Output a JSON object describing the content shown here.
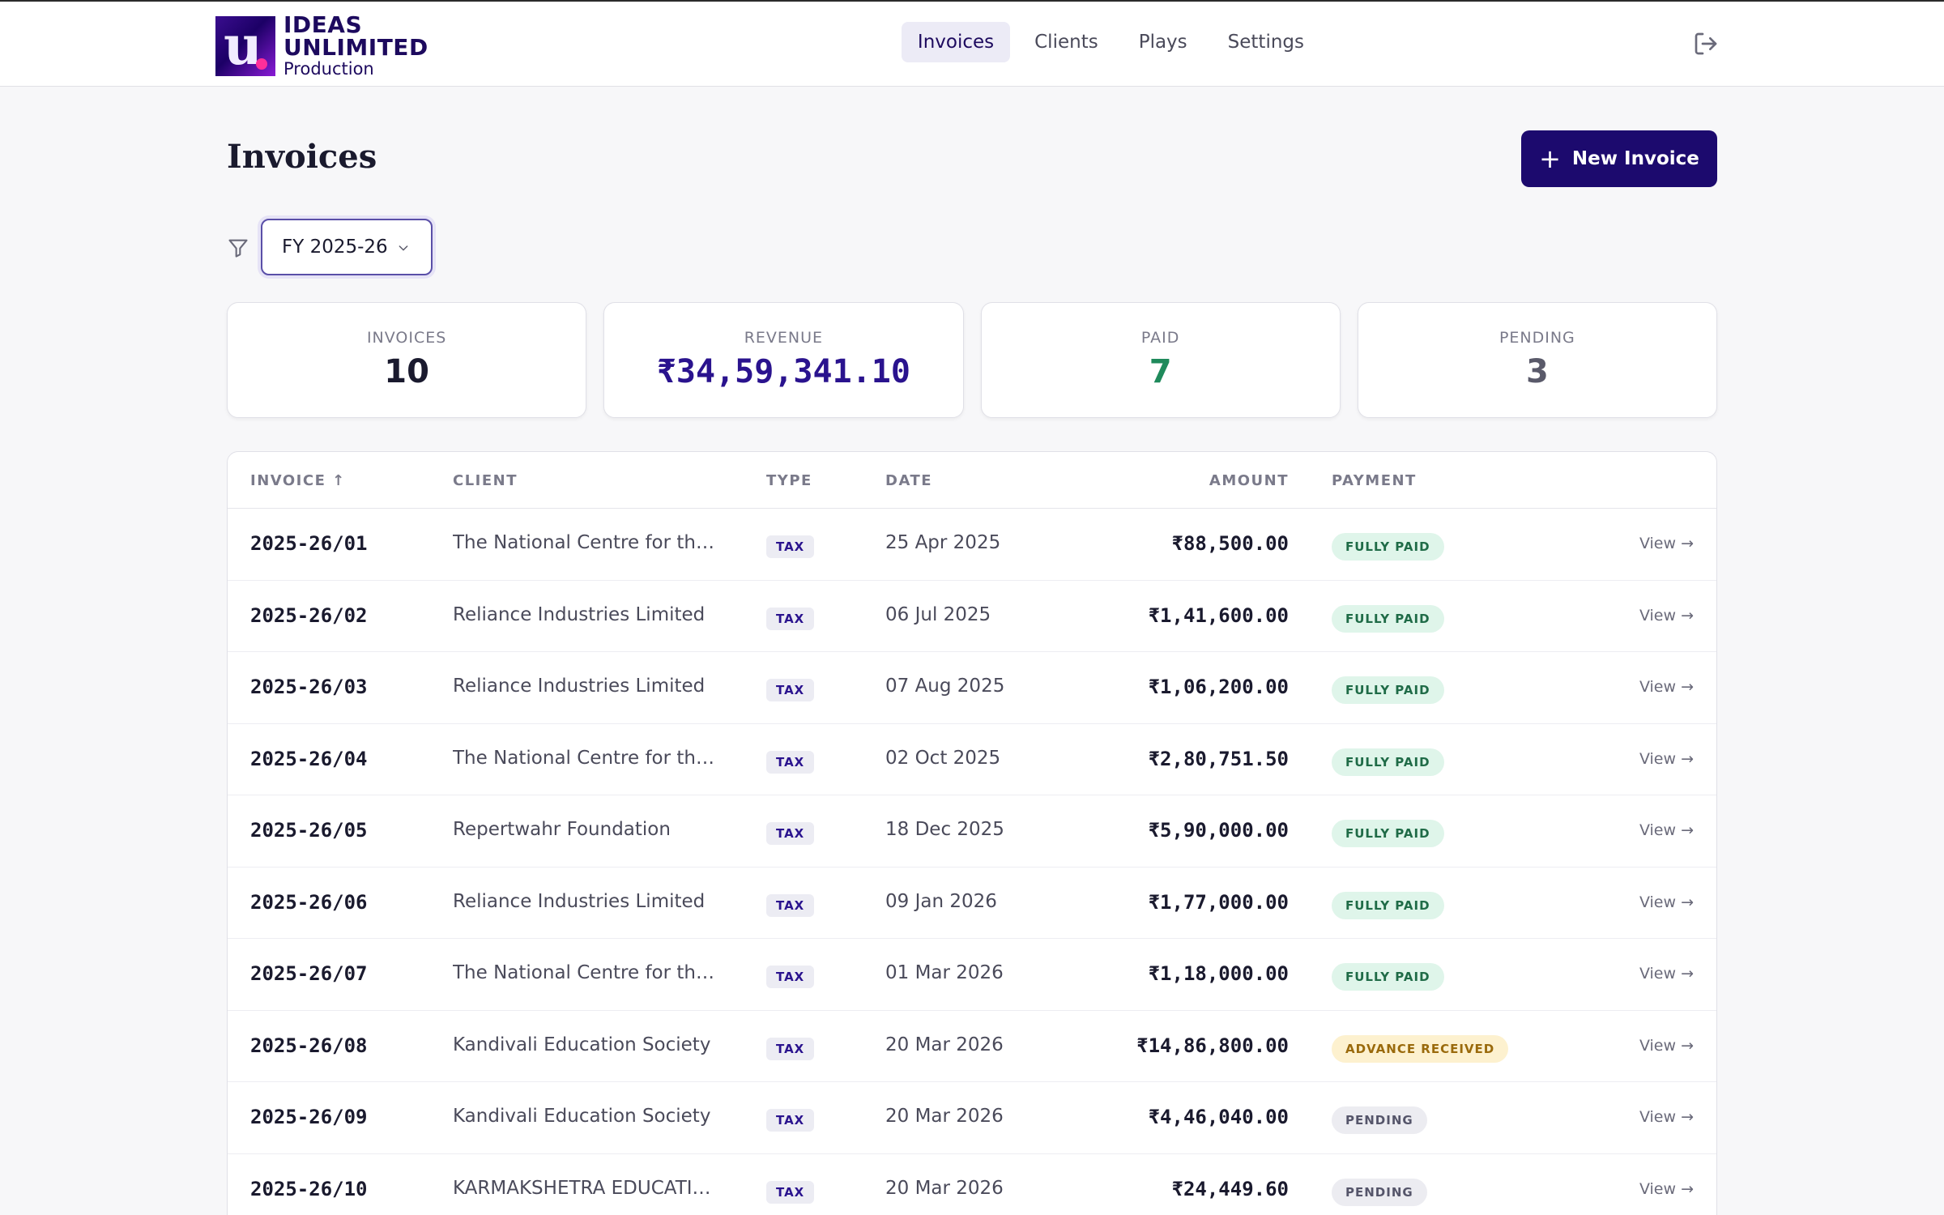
{
  "brand": {
    "line1": "IDEAS",
    "line2": "UNLIMITED",
    "line3": "Production"
  },
  "nav": {
    "items": [
      "Invoices",
      "Clients",
      "Plays",
      "Settings"
    ],
    "active": "Invoices"
  },
  "page": {
    "title": "Invoices",
    "new_button": "New Invoice"
  },
  "filter": {
    "selected": "FY 2025-26"
  },
  "stats": {
    "invoices": {
      "label": "INVOICES",
      "value": "10"
    },
    "revenue": {
      "label": "REVENUE",
      "value": "₹34,59,341.10"
    },
    "paid": {
      "label": "PAID",
      "value": "7"
    },
    "pending": {
      "label": "PENDING",
      "value": "3"
    }
  },
  "table": {
    "headers": {
      "invoice": "INVOICE ↑",
      "client": "CLIENT",
      "type": "TYPE",
      "date": "DATE",
      "amount": "AMOUNT",
      "payment": "PAYMENT"
    },
    "view_label": "View →",
    "rows": [
      {
        "invoice": "2025-26/01",
        "client": "The National Centre for the P...",
        "type": "TAX",
        "date": "25 Apr 2025",
        "amount": "₹88,500.00",
        "payment": "FULLY PAID",
        "status": "paid"
      },
      {
        "invoice": "2025-26/02",
        "client": "Reliance Industries Limited",
        "type": "TAX",
        "date": "06 Jul 2025",
        "amount": "₹1,41,600.00",
        "payment": "FULLY PAID",
        "status": "paid"
      },
      {
        "invoice": "2025-26/03",
        "client": "Reliance Industries Limited",
        "type": "TAX",
        "date": "07 Aug 2025",
        "amount": "₹1,06,200.00",
        "payment": "FULLY PAID",
        "status": "paid"
      },
      {
        "invoice": "2025-26/04",
        "client": "The National Centre for the P...",
        "type": "TAX",
        "date": "02 Oct 2025",
        "amount": "₹2,80,751.50",
        "payment": "FULLY PAID",
        "status": "paid"
      },
      {
        "invoice": "2025-26/05",
        "client": "Repertwahr Foundation",
        "type": "TAX",
        "date": "18 Dec 2025",
        "amount": "₹5,90,000.00",
        "payment": "FULLY PAID",
        "status": "paid"
      },
      {
        "invoice": "2025-26/06",
        "client": "Reliance Industries Limited",
        "type": "TAX",
        "date": "09 Jan 2026",
        "amount": "₹1,77,000.00",
        "payment": "FULLY PAID",
        "status": "paid"
      },
      {
        "invoice": "2025-26/07",
        "client": "The National Centre for the P...",
        "type": "TAX",
        "date": "01 Mar 2026",
        "amount": "₹1,18,000.00",
        "payment": "FULLY PAID",
        "status": "paid"
      },
      {
        "invoice": "2025-26/08",
        "client": "Kandivali Education Society",
        "type": "TAX",
        "date": "20 Mar 2026",
        "amount": "₹14,86,800.00",
        "payment": "ADVANCE RECEIVED",
        "status": "advance"
      },
      {
        "invoice": "2025-26/09",
        "client": "Kandivali Education Society",
        "type": "TAX",
        "date": "20 Mar 2026",
        "amount": "₹4,46,040.00",
        "payment": "PENDING",
        "status": "pending"
      },
      {
        "invoice": "2025-26/10",
        "client": "KARMAKSHETRA EDUCATION...",
        "type": "TAX",
        "date": "20 Mar 2026",
        "amount": "₹24,449.60",
        "payment": "PENDING",
        "status": "pending"
      }
    ]
  },
  "icons": {
    "filter": "filter-icon",
    "chevron": "chevron-down-icon",
    "logout": "logout-icon",
    "plus": "plus-icon",
    "sort": "sort-ascending-icon"
  },
  "colors": {
    "primary": "#1c0a6e",
    "paid_bg": "#dff5ea",
    "paid_text": "#1f6b47",
    "advance_bg": "#fdf1cf",
    "advance_text": "#9a6a0c",
    "pending_bg": "#ececf1",
    "pending_text": "#55556a",
    "paid_count": "#1f8a5b"
  }
}
